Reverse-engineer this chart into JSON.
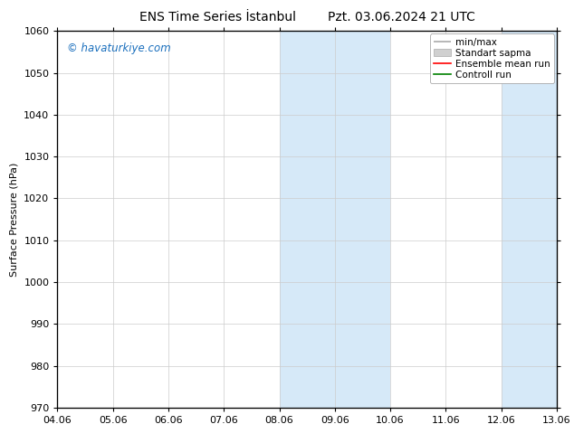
{
  "title_left": "ENS Time Series İstanbul",
  "title_right": "Pzt. 03.06.2024 21 UTC",
  "ylabel": "Surface Pressure (hPa)",
  "ylim": [
    970,
    1060
  ],
  "yticks": [
    970,
    980,
    990,
    1000,
    1010,
    1020,
    1030,
    1040,
    1050,
    1060
  ],
  "xtick_labels": [
    "04.06",
    "05.06",
    "06.06",
    "07.06",
    "08.06",
    "09.06",
    "10.06",
    "11.06",
    "12.06",
    "13.06"
  ],
  "shaded_bands": [
    {
      "xmin": 4,
      "xmax": 6
    },
    {
      "xmin": 8,
      "xmax": 9
    }
  ],
  "band_color": "#d6e9f8",
  "watermark": "© havaturkiye.com",
  "watermark_color": "#1a6fbd",
  "legend_entries": [
    "min/max",
    "Standart sapma",
    "Ensemble mean run",
    "Controll run"
  ],
  "legend_line_color": "#aaaaaa",
  "legend_patch_color": "#d0d0d0",
  "legend_red": "#ff0000",
  "legend_green": "#008000",
  "background_color": "#ffffff",
  "grid_color": "#cccccc",
  "title_fontsize": 10,
  "ylabel_fontsize": 8,
  "tick_fontsize": 8,
  "legend_fontsize": 7.5,
  "watermark_fontsize": 8.5
}
